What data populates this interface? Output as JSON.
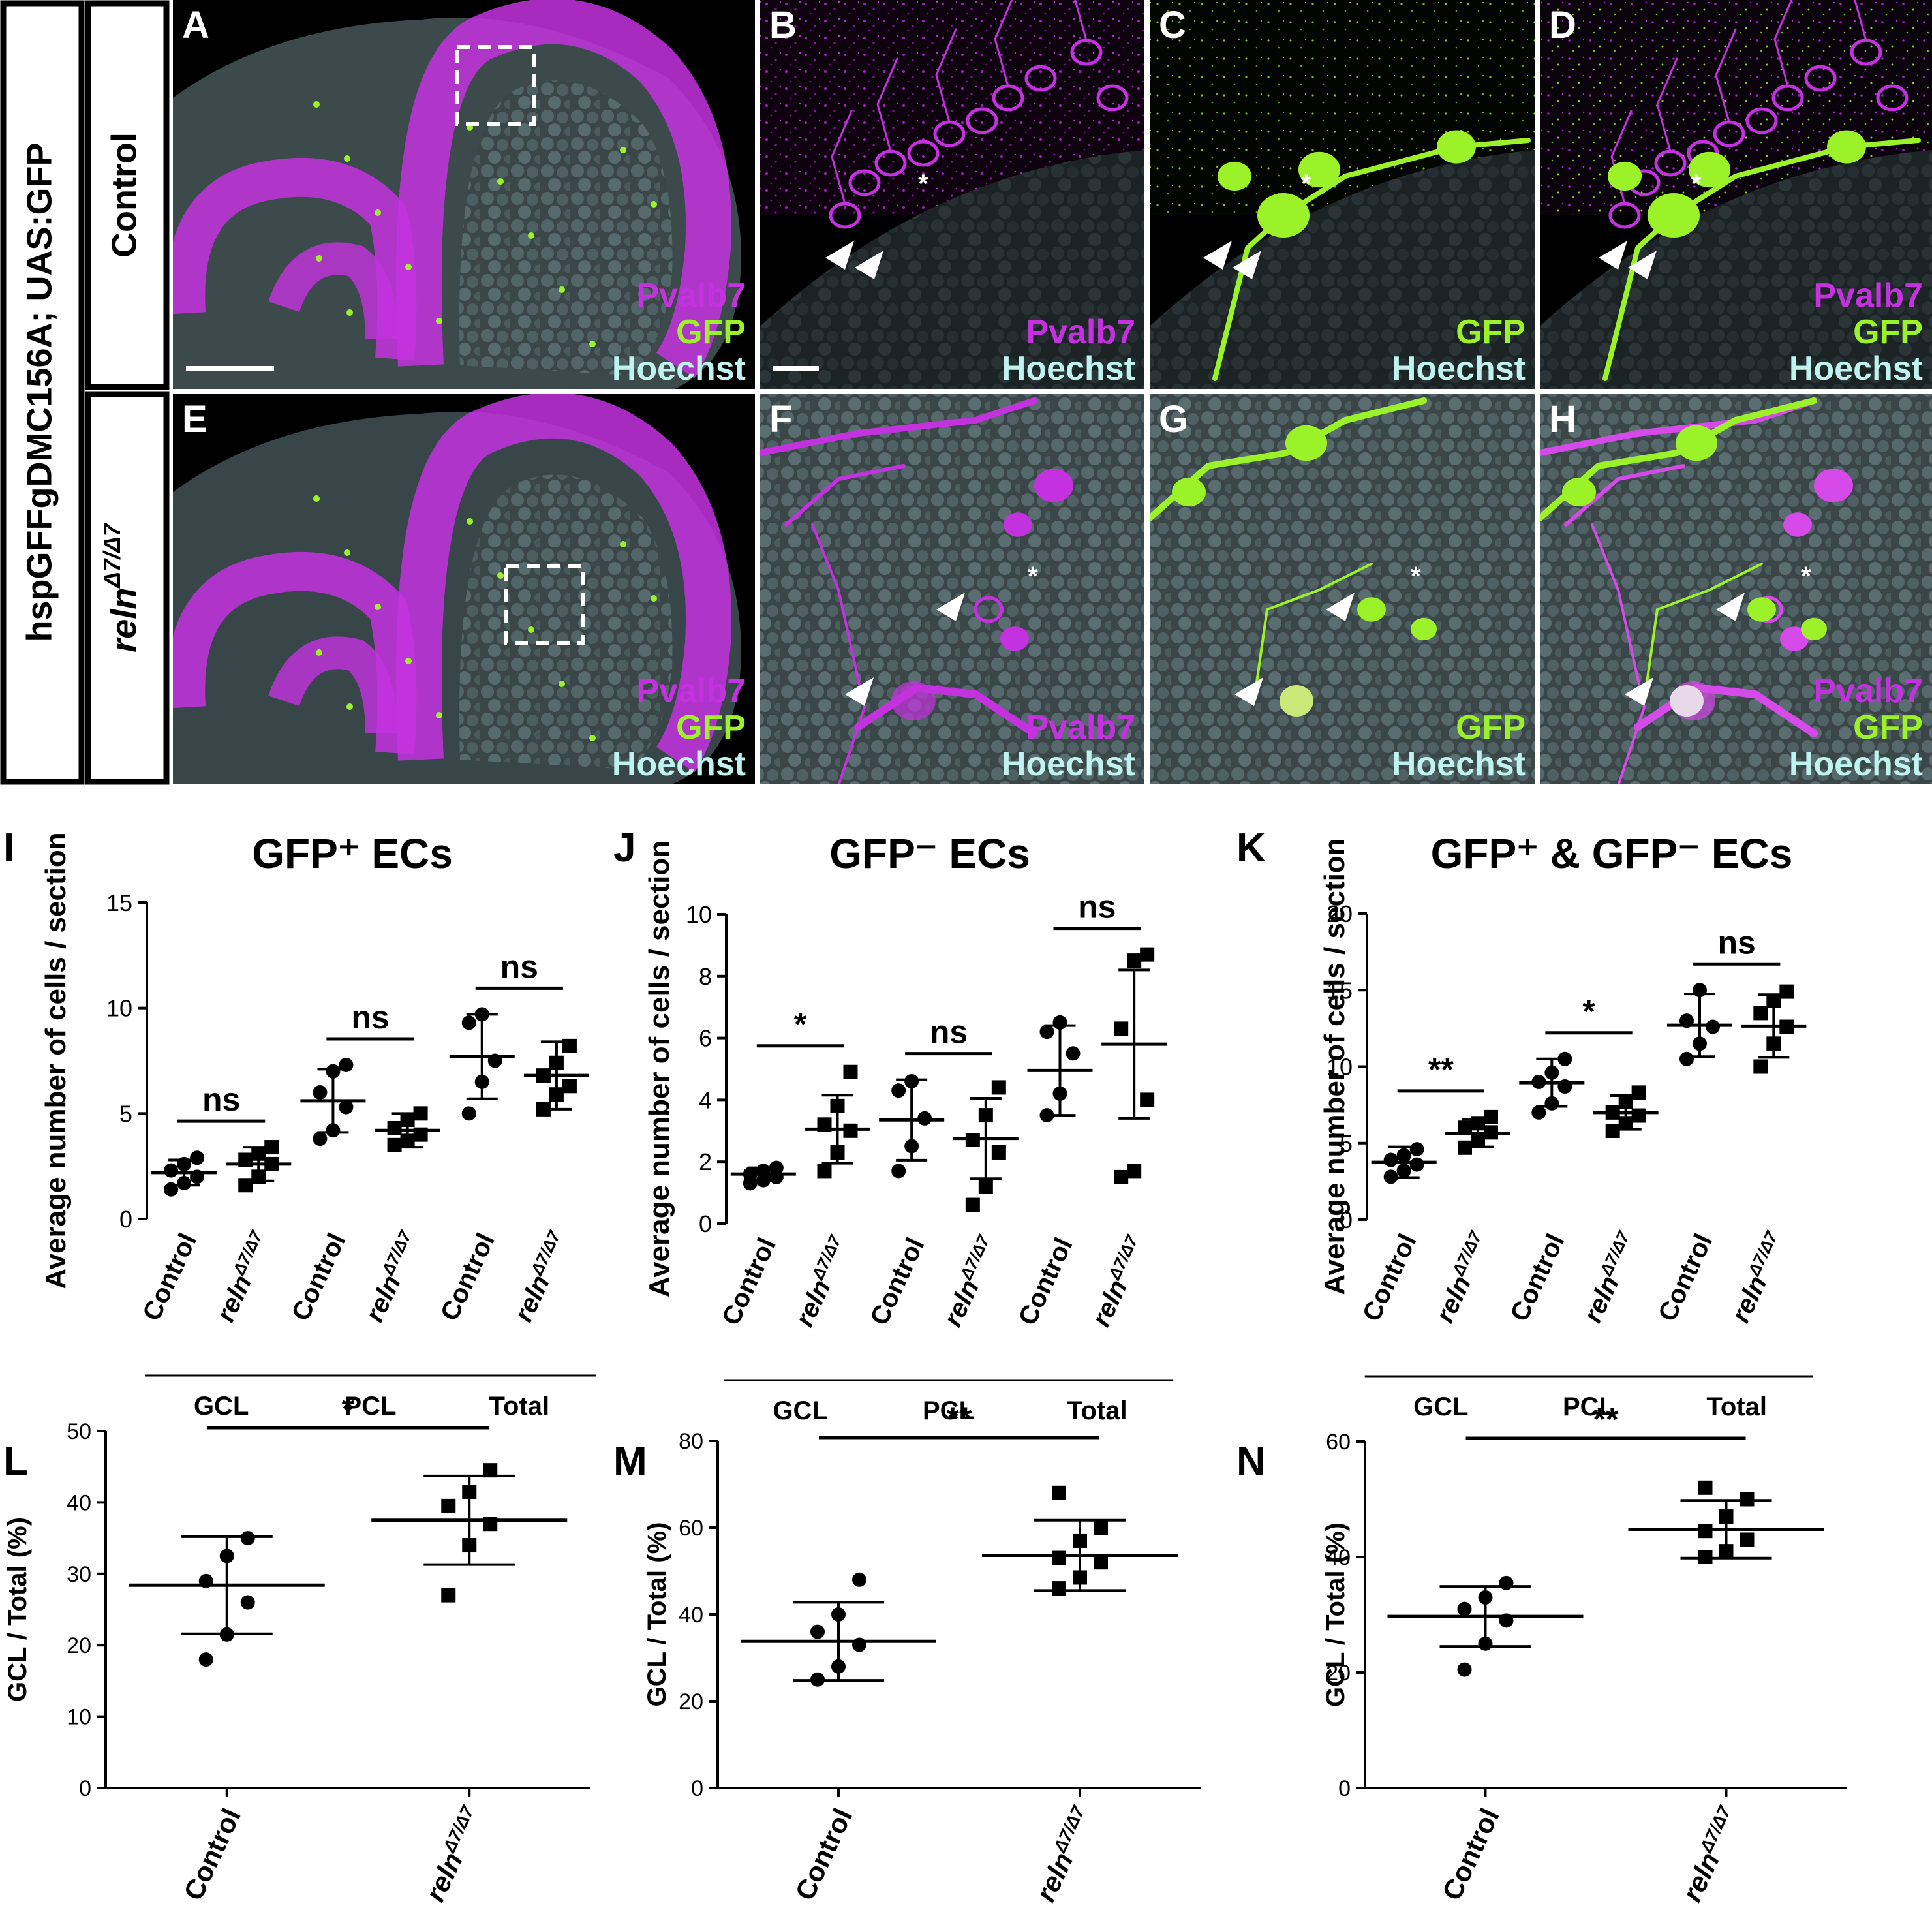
{
  "row_labels": {
    "genotype": "hspGFFgDMC156A; UAS:GFP",
    "control": "Control",
    "mutant_gene": "reln",
    "mutant_sup": "Δ7/Δ7"
  },
  "channels": {
    "pvalb7": "Pvalb7",
    "gfp": "GFP",
    "hoechst": "Hoechst"
  },
  "colors": {
    "magenta": "#c432e0",
    "green": "#9cf228",
    "cyan": "#bff3ef",
    "tissue": "#3e4a4c",
    "black": "#000000"
  },
  "panels": [
    {
      "letter": "A",
      "channels": [
        "Pvalb7",
        "GFP",
        "Hoechst"
      ],
      "overview": true
    },
    {
      "letter": "B",
      "channels": [
        "Pvalb7",
        "Hoechst"
      ]
    },
    {
      "letter": "C",
      "channels": [
        "GFP",
        "Hoechst"
      ]
    },
    {
      "letter": "D",
      "channels": [
        "Pvalb7",
        "GFP",
        "Hoechst"
      ]
    },
    {
      "letter": "E",
      "channels": [
        "Pvalb7",
        "GFP",
        "Hoechst"
      ],
      "overview": true
    },
    {
      "letter": "F",
      "channels": [
        "Pvalb7",
        "Hoechst"
      ]
    },
    {
      "letter": "G",
      "channels": [
        "GFP",
        "Hoechst"
      ]
    },
    {
      "letter": "H",
      "channels": [
        "Pvalb7",
        "GFP",
        "Hoechst"
      ]
    }
  ],
  "chart_data": [
    {
      "type": "scatter",
      "panel": "I",
      "title": "GFP⁺ ECs",
      "ylabel": "Average number of cells / section",
      "ylim": [
        0,
        15
      ],
      "yticks": [
        0,
        5,
        10,
        15
      ],
      "categories": [
        "Control",
        "relnΔ7/Δ7",
        "Control",
        "relnΔ7/Δ7",
        "Control",
        "relnΔ7/Δ7"
      ],
      "groups": [
        "GCL",
        "PCL",
        "Total"
      ],
      "series": [
        {
          "values": [
            1.4,
            1.7,
            2.0,
            2.3,
            2.6,
            2.9
          ],
          "mean": 2.2,
          "sd": 0.6
        },
        {
          "values": [
            1.6,
            2.0,
            2.6,
            2.8,
            3.1,
            3.4
          ],
          "mean": 2.6,
          "sd": 0.8
        },
        {
          "values": [
            3.8,
            4.2,
            5.3,
            6.0,
            7.0,
            7.3
          ],
          "mean": 5.6,
          "sd": 1.5
        },
        {
          "values": [
            3.5,
            3.7,
            4.0,
            4.3,
            4.7,
            5.0
          ],
          "mean": 4.2,
          "sd": 0.8
        },
        {
          "values": [
            5.0,
            6.5,
            7.5,
            9.3,
            9.7
          ],
          "mean": 7.7,
          "sd": 2.0
        },
        {
          "values": [
            5.2,
            5.9,
            6.3,
            6.8,
            7.4,
            8.2
          ],
          "mean": 6.8,
          "sd": 1.6
        }
      ],
      "significance": [
        "ns",
        "ns",
        "ns"
      ]
    },
    {
      "type": "scatter",
      "panel": "J",
      "title": "GFP⁻ ECs",
      "ylabel": "Average number of cells / section",
      "ylim": [
        0,
        10
      ],
      "yticks": [
        0,
        2,
        4,
        6,
        8,
        10
      ],
      "categories": [
        "Control",
        "relnΔ7/Δ7",
        "Control",
        "relnΔ7/Δ7",
        "Control",
        "relnΔ7/Δ7"
      ],
      "groups": [
        "GCL",
        "PCL",
        "Total"
      ],
      "series": [
        {
          "values": [
            1.3,
            1.4,
            1.5,
            1.6,
            1.7,
            1.8
          ],
          "mean": 1.6,
          "sd": 0.2
        },
        {
          "values": [
            1.7,
            2.3,
            3.0,
            3.2,
            3.8,
            4.9
          ],
          "mean": 3.05,
          "sd": 1.1
        },
        {
          "values": [
            1.7,
            2.5,
            3.4,
            4.3,
            4.6
          ],
          "mean": 3.35,
          "sd": 1.3
        },
        {
          "values": [
            0.6,
            1.2,
            2.3,
            2.7,
            3.5,
            4.4
          ],
          "mean": 2.75,
          "sd": 1.3
        },
        {
          "values": [
            3.5,
            4.2,
            5.5,
            6.2,
            6.5
          ],
          "mean": 4.95,
          "sd": 1.45
        },
        {
          "values": [
            1.5,
            1.7,
            4.0,
            6.3,
            8.5,
            8.7
          ],
          "mean": 5.8,
          "sd": 2.4
        }
      ],
      "significance": [
        "*",
        "ns",
        "ns"
      ]
    },
    {
      "type": "scatter",
      "panel": "K",
      "title": "GFP⁺ & GFP⁻ ECs",
      "ylabel": "Average number of cells / section",
      "ylim": [
        0,
        20
      ],
      "yticks": [
        0,
        5,
        10,
        15,
        20
      ],
      "categories": [
        "Control",
        "relnΔ7/Δ7",
        "Control",
        "relnΔ7/Δ7",
        "Control",
        "relnΔ7/Δ7"
      ],
      "groups": [
        "GCL",
        "PCL",
        "Total"
      ],
      "series": [
        {
          "values": [
            2.8,
            3.2,
            3.6,
            3.9,
            4.2,
            4.6
          ],
          "mean": 3.75,
          "sd": 1.0
        },
        {
          "values": [
            4.7,
            5.2,
            5.7,
            6.0,
            6.3,
            6.7
          ],
          "mean": 5.65,
          "sd": 0.9
        },
        {
          "values": [
            7.0,
            7.6,
            8.7,
            9.0,
            9.6,
            10.5
          ],
          "mean": 8.95,
          "sd": 1.55
        },
        {
          "values": [
            5.8,
            6.3,
            6.8,
            7.0,
            7.7,
            8.3
          ],
          "mean": 7.0,
          "sd": 1.1
        },
        {
          "values": [
            10.5,
            11.5,
            12.6,
            13.0,
            15.0
          ],
          "mean": 12.7,
          "sd": 2.05
        },
        {
          "values": [
            10.0,
            11.5,
            12.6,
            13.5,
            14.3,
            14.9
          ],
          "mean": 12.65,
          "sd": 2.05
        }
      ],
      "significance": [
        "**",
        "*",
        "ns"
      ]
    },
    {
      "type": "scatter",
      "panel": "L",
      "ylabel": "GCL / Total (%)",
      "ylim": [
        0,
        50
      ],
      "yticks": [
        0,
        10,
        20,
        30,
        40,
        50
      ],
      "categories": [
        "Control",
        "relnΔ7/Δ7"
      ],
      "series": [
        {
          "values": [
            18.0,
            21.5,
            26.0,
            29.0,
            32.5,
            35.0
          ],
          "mean": 28.4,
          "sd": 6.8
        },
        {
          "values": [
            27.0,
            34.0,
            37.0,
            39.5,
            41.5,
            44.5
          ],
          "mean": 37.5,
          "sd": 6.2
        }
      ],
      "significance": [
        "*"
      ]
    },
    {
      "type": "scatter",
      "panel": "M",
      "ylabel": "GCL / Total (%)",
      "ylim": [
        0,
        80
      ],
      "yticks": [
        0,
        20,
        40,
        60,
        80
      ],
      "categories": [
        "Control",
        "relnΔ7/Δ7"
      ],
      "series": [
        {
          "values": [
            25.0,
            28.0,
            33.0,
            36.0,
            40.0,
            48.0
          ],
          "mean": 33.8,
          "sd": 9.0
        },
        {
          "values": [
            46.0,
            48.5,
            52.0,
            53.0,
            57.0,
            60.0,
            68.0
          ],
          "mean": 53.6,
          "sd": 8.1
        }
      ],
      "significance": [
        "**"
      ]
    },
    {
      "type": "scatter",
      "panel": "N",
      "ylabel": "GCL / Total (%)",
      "ylim": [
        0,
        60
      ],
      "yticks": [
        0,
        20,
        40,
        60
      ],
      "categories": [
        "Control",
        "relnΔ7/Δ7"
      ],
      "series": [
        {
          "values": [
            20.5,
            25.0,
            29.0,
            31.0,
            33.0,
            35.5
          ],
          "mean": 29.7,
          "sd": 5.2
        },
        {
          "values": [
            40.0,
            41.0,
            43.0,
            44.5,
            47.0,
            50.0,
            52.0
          ],
          "mean": 44.8,
          "sd": 5.0
        },
        {
          "values": [],
          "mean": 0,
          "sd": 0
        }
      ],
      "significance": [
        "**"
      ]
    }
  ]
}
